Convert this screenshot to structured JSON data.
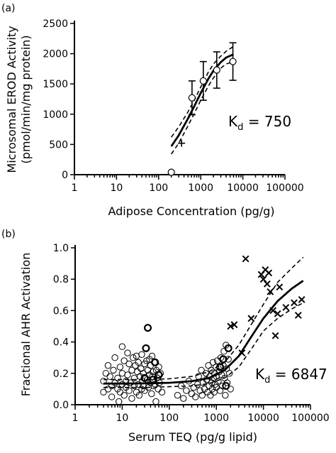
{
  "chart_data": [
    {
      "panel": "(a)",
      "type": "scatter",
      "xlabel": "Adipose Concentration (pg/g)",
      "ylabel_line1": "Microsomal EROD Activity",
      "ylabel_line2": "(pmol/min/mg protein)",
      "xscale": "log",
      "xlim": [
        1,
        100000
      ],
      "ylim": [
        0,
        2500
      ],
      "xticks": [
        "1",
        "10",
        "100",
        "1000",
        "10000",
        "100000"
      ],
      "yticks": [
        "0",
        "500",
        "1000",
        "1500",
        "2000",
        "2500"
      ],
      "annotation": {
        "text": "K",
        "sub": "d",
        "rest": " = 750"
      },
      "points": [
        {
          "x": 200,
          "y": 40,
          "err": null
        },
        {
          "x": 620,
          "y": 1270,
          "err": 280
        },
        {
          "x": 1150,
          "y": 1550,
          "err": 320
        },
        {
          "x": 2400,
          "y": 1730,
          "err": 300
        },
        {
          "x": 5800,
          "y": 1870,
          "err": 310
        }
      ],
      "markers": [
        {
          "x": 350,
          "y": 520
        }
      ],
      "fit_curve": {
        "x": [
          200,
          300,
          500,
          700,
          1000,
          1500,
          2000,
          3000,
          4000,
          6000
        ],
        "y": [
          470,
          650,
          930,
          1130,
          1350,
          1580,
          1720,
          1860,
          1935,
          1990
        ]
      },
      "ci_upper": {
        "x": [
          200,
          300,
          500,
          700,
          1000,
          1500,
          2000,
          3000,
          4000,
          6000
        ],
        "y": [
          620,
          790,
          1040,
          1230,
          1450,
          1690,
          1830,
          1960,
          2040,
          2120
        ]
      },
      "ci_lower": {
        "x": [
          200,
          300,
          500,
          700,
          1000,
          1500,
          2000,
          3000,
          4000,
          6000
        ],
        "y": [
          340,
          520,
          810,
          1010,
          1230,
          1460,
          1600,
          1760,
          1830,
          1870
        ]
      }
    },
    {
      "panel": "(b)",
      "type": "scatter",
      "xlabel": "Serum TEQ (pg/g lipid)",
      "ylabel": "Fractional AHR Activation",
      "xscale": "log",
      "xlim": [
        1,
        100000
      ],
      "ylim": [
        0,
        1.0
      ],
      "xticks": [
        "1",
        "10",
        "100",
        "1000",
        "10000",
        "100000"
      ],
      "yticks": [
        "0.0",
        "0.2",
        "0.4",
        "0.6",
        "0.8",
        "1.0"
      ],
      "annotation": {
        "text": "K",
        "sub": "d",
        "rest": " = 6847"
      },
      "circles": [
        {
          "x": 4,
          "y": 0.15
        },
        {
          "x": 4,
          "y": 0.08
        },
        {
          "x": 4.5,
          "y": 0.2
        },
        {
          "x": 5,
          "y": 0.1
        },
        {
          "x": 5,
          "y": 0.25
        },
        {
          "x": 5.5,
          "y": 0.18
        },
        {
          "x": 6,
          "y": 0.12
        },
        {
          "x": 6,
          "y": 0.05
        },
        {
          "x": 6.5,
          "y": 0.22
        },
        {
          "x": 7,
          "y": 0.14
        },
        {
          "x": 7,
          "y": 0.3
        },
        {
          "x": 8,
          "y": 0.1
        },
        {
          "x": 8,
          "y": 0.17
        },
        {
          "x": 8.5,
          "y": 0.02
        },
        {
          "x": 9,
          "y": 0.24
        },
        {
          "x": 9,
          "y": 0.08
        },
        {
          "x": 10,
          "y": 0.13
        },
        {
          "x": 10,
          "y": 0.37
        },
        {
          "x": 10,
          "y": 0.2
        },
        {
          "x": 11,
          "y": 0.06
        },
        {
          "x": 11,
          "y": 0.28
        },
        {
          "x": 12,
          "y": 0.15
        },
        {
          "x": 12,
          "y": 0.11
        },
        {
          "x": 13,
          "y": 0.33
        },
        {
          "x": 13,
          "y": 0.19
        },
        {
          "x": 14,
          "y": 0.09
        },
        {
          "x": 14,
          "y": 0.26
        },
        {
          "x": 15,
          "y": 0.14
        },
        {
          "x": 16,
          "y": 0.22
        },
        {
          "x": 16,
          "y": 0.04
        },
        {
          "x": 17,
          "y": 0.3
        },
        {
          "x": 18,
          "y": 0.12
        },
        {
          "x": 18,
          "y": 0.17
        },
        {
          "x": 19,
          "y": 0.25
        },
        {
          "x": 20,
          "y": 0.08
        },
        {
          "x": 20,
          "y": 0.31
        },
        {
          "x": 21,
          "y": 0.21
        },
        {
          "x": 22,
          "y": 0.13
        },
        {
          "x": 22,
          "y": 0.27
        },
        {
          "x": 23,
          "y": 0.06
        },
        {
          "x": 24,
          "y": 0.18
        },
        {
          "x": 25,
          "y": 0.23
        },
        {
          "x": 26,
          "y": 0.1
        },
        {
          "x": 26,
          "y": 0.32
        },
        {
          "x": 27,
          "y": 0.15
        },
        {
          "x": 28,
          "y": 0.2
        },
        {
          "x": 28,
          "y": 0.12
        },
        {
          "x": 30,
          "y": 0.26
        },
        {
          "x": 30,
          "y": 0.09
        },
        {
          "x": 32,
          "y": 0.36
        },
        {
          "x": 33,
          "y": 0.28
        },
        {
          "x": 34,
          "y": 0.16
        },
        {
          "x": 35,
          "y": 0.49
        },
        {
          "x": 35,
          "y": 0.22
        },
        {
          "x": 36,
          "y": 0.11
        },
        {
          "x": 38,
          "y": 0.29
        },
        {
          "x": 38,
          "y": 0.19
        },
        {
          "x": 40,
          "y": 0.25
        },
        {
          "x": 40,
          "y": 0.14
        },
        {
          "x": 42,
          "y": 0.07
        },
        {
          "x": 43,
          "y": 0.31
        },
        {
          "x": 44,
          "y": 0.18
        },
        {
          "x": 45,
          "y": 0.21
        },
        {
          "x": 47,
          "y": 0.12
        },
        {
          "x": 48,
          "y": 0.27
        },
        {
          "x": 50,
          "y": 0.13
        },
        {
          "x": 52,
          "y": 0.02
        },
        {
          "x": 53,
          "y": 0.22
        },
        {
          "x": 55,
          "y": 0.17
        },
        {
          "x": 58,
          "y": 0.1
        },
        {
          "x": 60,
          "y": 0.24
        },
        {
          "x": 62,
          "y": 0.14
        },
        {
          "x": 65,
          "y": 0.2
        },
        {
          "x": 70,
          "y": 0.08
        },
        {
          "x": 150,
          "y": 0.06
        },
        {
          "x": 180,
          "y": 0.12
        },
        {
          "x": 200,
          "y": 0.04
        },
        {
          "x": 230,
          "y": 0.09
        },
        {
          "x": 260,
          "y": 0.15
        },
        {
          "x": 300,
          "y": 0.07
        },
        {
          "x": 330,
          "y": 0.11
        },
        {
          "x": 360,
          "y": 0.05
        },
        {
          "x": 400,
          "y": 0.13
        },
        {
          "x": 420,
          "y": 0.18
        },
        {
          "x": 450,
          "y": 0.09
        },
        {
          "x": 480,
          "y": 0.22
        },
        {
          "x": 500,
          "y": 0.06
        },
        {
          "x": 520,
          "y": 0.14
        },
        {
          "x": 560,
          "y": 0.1
        },
        {
          "x": 600,
          "y": 0.2
        },
        {
          "x": 620,
          "y": 0.16
        },
        {
          "x": 650,
          "y": 0.08
        },
        {
          "x": 680,
          "y": 0.25
        },
        {
          "x": 700,
          "y": 0.12
        },
        {
          "x": 720,
          "y": 0.18
        },
        {
          "x": 750,
          "y": 0.06
        },
        {
          "x": 780,
          "y": 0.22
        },
        {
          "x": 800,
          "y": 0.14
        },
        {
          "x": 820,
          "y": 0.1
        },
        {
          "x": 850,
          "y": 0.27
        },
        {
          "x": 870,
          "y": 0.17
        },
        {
          "x": 900,
          "y": 0.08
        },
        {
          "x": 920,
          "y": 0.2
        },
        {
          "x": 950,
          "y": 0.13
        },
        {
          "x": 980,
          "y": 0.24
        },
        {
          "x": 1000,
          "y": 0.18
        },
        {
          "x": 1000,
          "y": 0.11
        },
        {
          "x": 1050,
          "y": 0.28
        },
        {
          "x": 1100,
          "y": 0.15
        },
        {
          "x": 1150,
          "y": 0.21
        },
        {
          "x": 1200,
          "y": 0.09
        },
        {
          "x": 1250,
          "y": 0.3
        },
        {
          "x": 1300,
          "y": 0.19
        },
        {
          "x": 1350,
          "y": 0.12
        },
        {
          "x": 1400,
          "y": 0.25
        },
        {
          "x": 1450,
          "y": 0.34
        },
        {
          "x": 1500,
          "y": 0.17
        },
        {
          "x": 1550,
          "y": 0.06
        },
        {
          "x": 1600,
          "y": 0.38
        },
        {
          "x": 1650,
          "y": 0.23
        },
        {
          "x": 1700,
          "y": 0.14
        },
        {
          "x": 1800,
          "y": 0.29
        },
        {
          "x": 1900,
          "y": 0.2
        },
        {
          "x": 2000,
          "y": 0.1
        }
      ],
      "bold_circles": [
        {
          "x": 35,
          "y": 0.49
        },
        {
          "x": 32,
          "y": 0.36
        },
        {
          "x": 45,
          "y": 0.16
        },
        {
          "x": 30,
          "y": 0.17
        },
        {
          "x": 50,
          "y": 0.27
        },
        {
          "x": 60,
          "y": 0.19
        },
        {
          "x": 1200,
          "y": 0.24
        },
        {
          "x": 1400,
          "y": 0.29
        },
        {
          "x": 1600,
          "y": 0.12
        },
        {
          "x": 1800,
          "y": 0.36
        }
      ],
      "crosses": [
        {
          "x": 2000,
          "y": 0.5
        },
        {
          "x": 2400,
          "y": 0.51
        },
        {
          "x": 3500,
          "y": 0.33
        },
        {
          "x": 4200,
          "y": 0.93
        },
        {
          "x": 5500,
          "y": 0.55
        },
        {
          "x": 9000,
          "y": 0.83
        },
        {
          "x": 10000,
          "y": 0.8
        },
        {
          "x": 11000,
          "y": 0.86
        },
        {
          "x": 12000,
          "y": 0.77
        },
        {
          "x": 13000,
          "y": 0.84
        },
        {
          "x": 14000,
          "y": 0.72
        },
        {
          "x": 16000,
          "y": 0.6
        },
        {
          "x": 18000,
          "y": 0.44
        },
        {
          "x": 20000,
          "y": 0.58
        },
        {
          "x": 22000,
          "y": 0.75
        },
        {
          "x": 30000,
          "y": 0.62
        },
        {
          "x": 45000,
          "y": 0.65
        },
        {
          "x": 55000,
          "y": 0.57
        },
        {
          "x": 65000,
          "y": 0.67
        }
      ],
      "fit_curve": {
        "x": [
          4,
          10,
          30,
          100,
          300,
          700,
          1500,
          3000,
          6000,
          10000,
          20000,
          40000,
          70000
        ],
        "y": [
          0.135,
          0.135,
          0.136,
          0.14,
          0.15,
          0.17,
          0.22,
          0.31,
          0.45,
          0.55,
          0.66,
          0.74,
          0.79
        ]
      },
      "ci_upper": {
        "x": [
          4,
          10,
          30,
          100,
          300,
          700,
          1500,
          3000,
          6000,
          10000,
          20000,
          40000,
          70000
        ],
        "y": [
          0.16,
          0.16,
          0.16,
          0.165,
          0.18,
          0.21,
          0.27,
          0.38,
          0.53,
          0.64,
          0.78,
          0.87,
          0.94
        ]
      },
      "ci_lower": {
        "x": [
          4,
          10,
          30,
          100,
          300,
          700,
          1500,
          3000,
          6000,
          10000,
          20000,
          40000,
          70000
        ],
        "y": [
          0.11,
          0.11,
          0.11,
          0.115,
          0.12,
          0.135,
          0.17,
          0.24,
          0.37,
          0.47,
          0.55,
          0.61,
          0.65
        ]
      }
    }
  ]
}
